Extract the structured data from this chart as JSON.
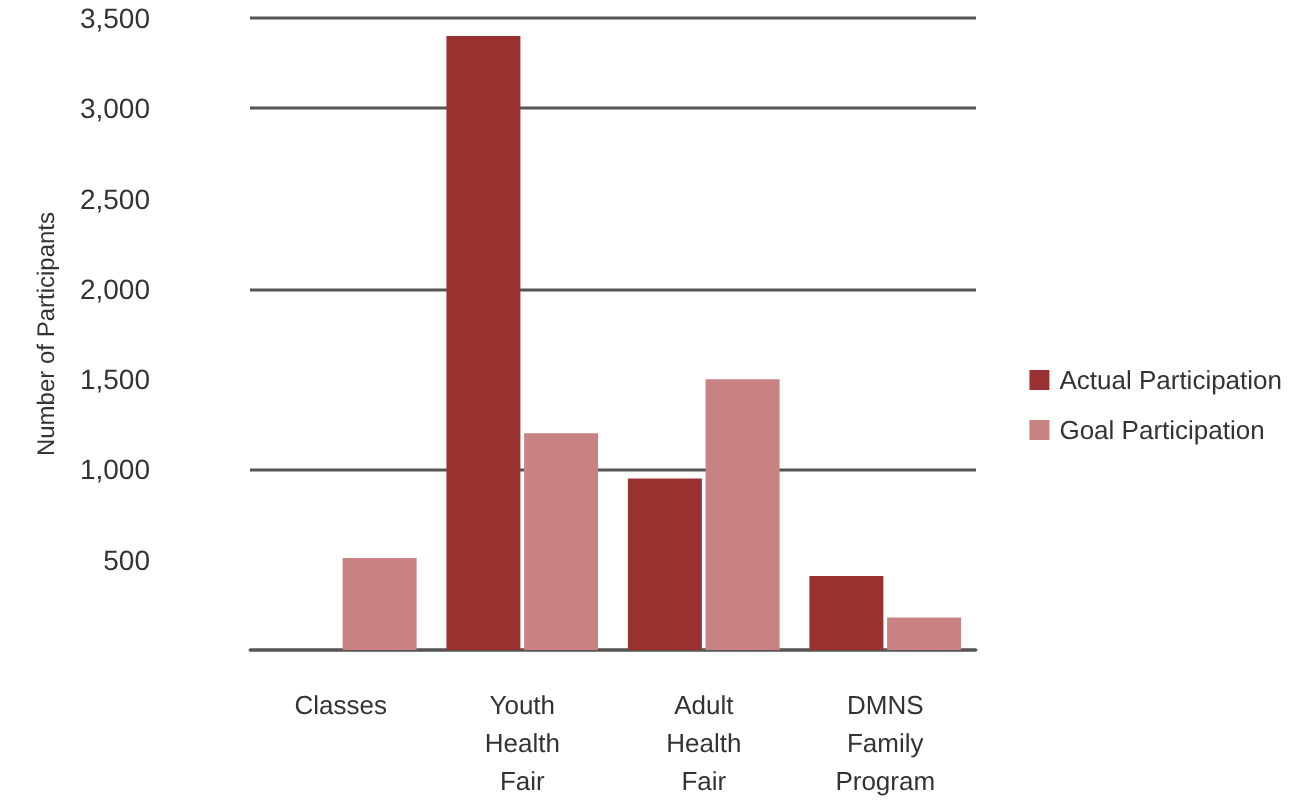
{
  "chart_data": {
    "type": "bar",
    "ylabel": "Number of Participants",
    "categories": [
      "Classes",
      "Youth\nHealth\nFair",
      "Adult\nHealth\nFair",
      "DMNS\nFamily\nProgram"
    ],
    "series": [
      {
        "name": "Actual Participation",
        "color": "#9a3232",
        "values": [
          null,
          3400,
          950,
          410
        ]
      },
      {
        "name": "Goal Participation",
        "color": "#c98282",
        "values": [
          510,
          1200,
          1500,
          180
        ]
      }
    ],
    "ylim": [
      0,
      3500
    ],
    "yticks": [
      500,
      {
        "value": 1000,
        "label": "1,000"
      },
      {
        "value": 1500,
        "label": "1,500"
      },
      {
        "value": 2000,
        "label": "2,000"
      },
      {
        "value": 2500,
        "label": "2,500"
      },
      {
        "value": 3000,
        "label": "3,000"
      },
      {
        "value": 3500,
        "label": "3,500"
      }
    ],
    "grid": "y",
    "legend": "right"
  }
}
